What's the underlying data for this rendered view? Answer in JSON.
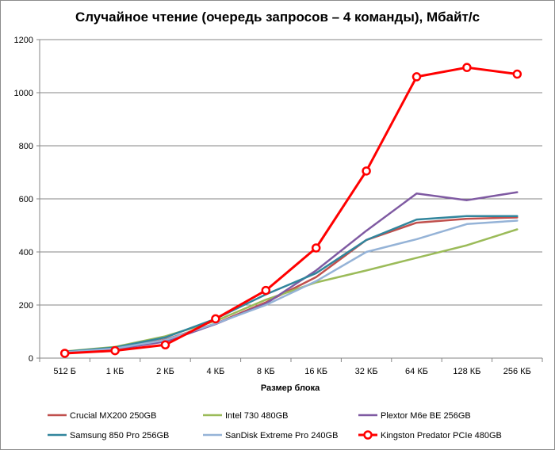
{
  "chart_data": {
    "type": "line",
    "title": "Случайное чтение (очередь запросов – 4 команды), Мбайт/с",
    "xlabel": "Размер блока",
    "ylabel": "",
    "categories": [
      "512 Б",
      "1 КБ",
      "2 КБ",
      "4 КБ",
      "8 КБ",
      "16 КБ",
      "32 КБ",
      "64 КБ",
      "128 КБ",
      "256 КБ"
    ],
    "ylim": [
      0,
      1200
    ],
    "yticks": [
      0,
      200,
      400,
      600,
      800,
      1000,
      1200
    ],
    "grid": "horizontal",
    "legend_position": "bottom",
    "series": [
      {
        "name": "Crucial MX200 250GB",
        "color": "#c0504d",
        "marker": "none",
        "values": [
          22,
          35,
          70,
          130,
          210,
          305,
          445,
          510,
          525,
          530
        ]
      },
      {
        "name": "Intel 730 480GB",
        "color": "#9bbb59",
        "marker": "none",
        "values": [
          25,
          42,
          82,
          140,
          220,
          285,
          330,
          378,
          425,
          485
        ]
      },
      {
        "name": "Plextor M6e BE 256GB",
        "color": "#7f5aa2",
        "marker": "none",
        "values": [
          22,
          33,
          62,
          128,
          205,
          330,
          480,
          620,
          595,
          625
        ]
      },
      {
        "name": "Samsung 850 Pro 256GB",
        "color": "#31859c",
        "marker": "none",
        "values": [
          24,
          40,
          78,
          148,
          240,
          320,
          445,
          522,
          535,
          535
        ]
      },
      {
        "name": "SanDisk Extreme Pro 240GB",
        "color": "#95b3d7",
        "marker": "none",
        "values": [
          22,
          36,
          68,
          130,
          200,
          290,
          400,
          448,
          505,
          518
        ]
      },
      {
        "name": "Kingston Predator PCIe 480GB",
        "color": "#ff0000",
        "marker": "circle",
        "values": [
          18,
          28,
          50,
          148,
          255,
          415,
          705,
          1060,
          1095,
          1070
        ]
      }
    ]
  }
}
